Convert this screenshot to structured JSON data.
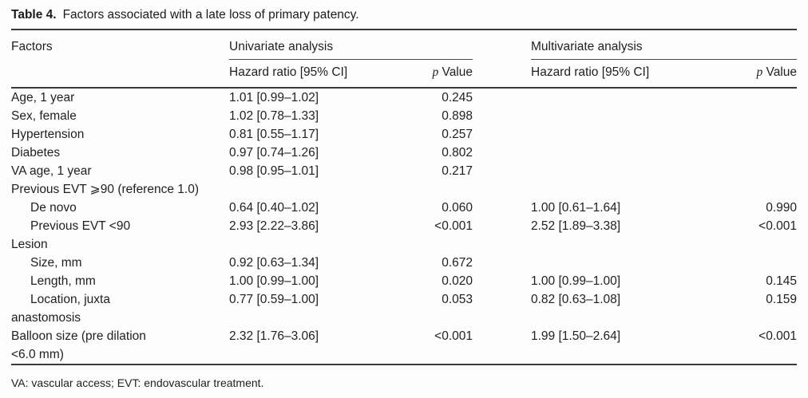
{
  "caption": {
    "label": "Table 4.",
    "text": "Factors associated with a late loss of primary patency."
  },
  "header": {
    "factors": "Factors",
    "univariate": "Univariate analysis",
    "multivariate": "Multivariate analysis",
    "hazard_ratio": "Hazard ratio [95% CI]",
    "p_italic": "p",
    "p_word": "Value"
  },
  "rows": [
    {
      "factor": "Age, 1 year",
      "indent": false,
      "uv_hr": "1.01 [0.99–1.02]",
      "uv_p": "0.245",
      "mv_hr": "",
      "mv_p": ""
    },
    {
      "factor": "Sex, female",
      "indent": false,
      "uv_hr": "1.02 [0.78–1.33]",
      "uv_p": "0.898",
      "mv_hr": "",
      "mv_p": ""
    },
    {
      "factor": "Hypertension",
      "indent": false,
      "uv_hr": "0.81 [0.55–1.17]",
      "uv_p": "0.257",
      "mv_hr": "",
      "mv_p": ""
    },
    {
      "factor": "Diabetes",
      "indent": false,
      "uv_hr": "0.97 [0.74–1.26]",
      "uv_p": "0.802",
      "mv_hr": "",
      "mv_p": ""
    },
    {
      "factor": "VA age, 1 year",
      "indent": false,
      "uv_hr": "0.98 [0.95–1.01]",
      "uv_p": "0.217",
      "mv_hr": "",
      "mv_p": ""
    },
    {
      "factor": "Previous EVT ⩾90 (reference 1.0)",
      "indent": false,
      "uv_hr": "",
      "uv_p": "",
      "mv_hr": "",
      "mv_p": ""
    },
    {
      "factor": "De novo",
      "indent": true,
      "uv_hr": "0.64 [0.40–1.02]",
      "uv_p": "0.060",
      "mv_hr": "1.00 [0.61–1.64]",
      "mv_p": "0.990"
    },
    {
      "factor": "Previous EVT <90",
      "indent": true,
      "uv_hr": "2.93 [2.22–3.86]",
      "uv_p": "<0.001",
      "mv_hr": "2.52 [1.89–3.38]",
      "mv_p": "<0.001"
    },
    {
      "factor": "Lesion",
      "indent": false,
      "uv_hr": "",
      "uv_p": "",
      "mv_hr": "",
      "mv_p": ""
    },
    {
      "factor": "Size, mm",
      "indent": true,
      "uv_hr": "0.92 [0.63–1.34]",
      "uv_p": "0.672",
      "mv_hr": "",
      "mv_p": ""
    },
    {
      "factor": "Length, mm",
      "indent": true,
      "uv_hr": "1.00 [0.99–1.00]",
      "uv_p": "0.020",
      "mv_hr": "1.00 [0.99–1.00]",
      "mv_p": "0.145"
    },
    {
      "factor": "Location, juxta",
      "indent": true,
      "uv_hr": "0.77 [0.59–1.00]",
      "uv_p": "0.053",
      "mv_hr": "0.82 [0.63–1.08]",
      "mv_p": "0.159"
    },
    {
      "factor": "anastomosis",
      "indent": false,
      "uv_hr": "",
      "uv_p": "",
      "mv_hr": "",
      "mv_p": ""
    },
    {
      "factor": "Balloon size (pre dilation",
      "indent": false,
      "uv_hr": "2.32 [1.76–3.06]",
      "uv_p": "<0.001",
      "mv_hr": "1.99 [1.50–2.64]",
      "mv_p": "<0.001"
    },
    {
      "factor": "<6.0 mm)",
      "indent": false,
      "uv_hr": "",
      "uv_p": "",
      "mv_hr": "",
      "mv_p": ""
    }
  ],
  "footnote": "VA: vascular access; EVT: endovascular treatment."
}
